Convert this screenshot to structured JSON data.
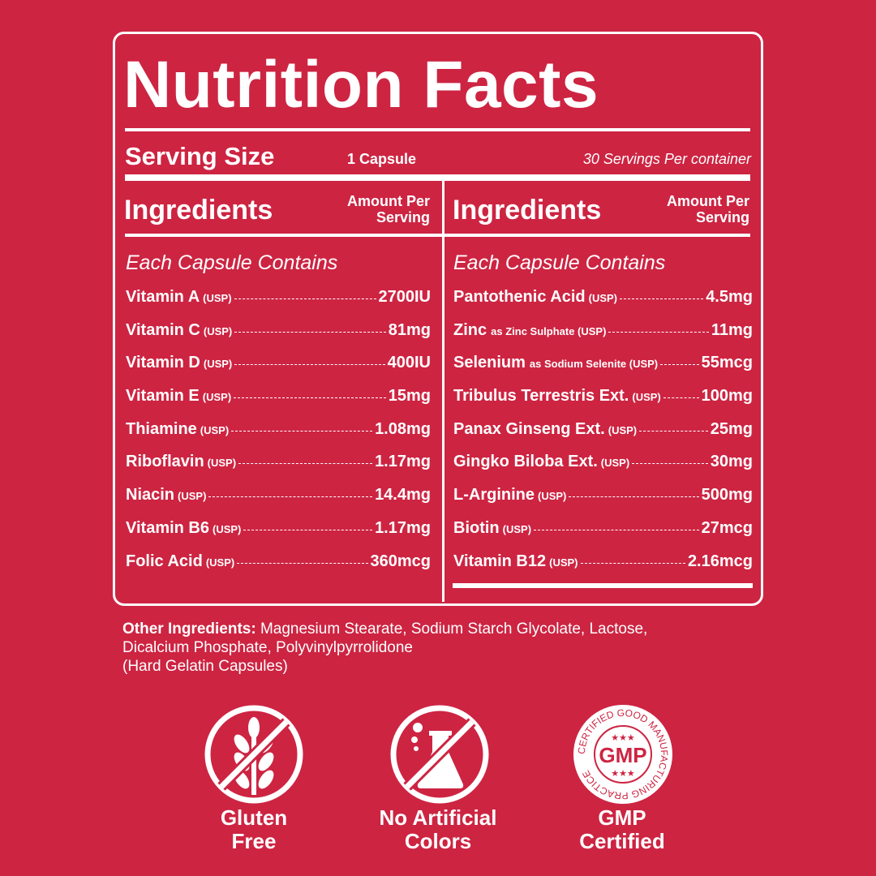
{
  "title": "Nutrition Facts",
  "serving": {
    "label": "Serving Size",
    "size": "1 Capsule",
    "per_container": "30 Servings Per container"
  },
  "columns": [
    {
      "header": "Ingredients",
      "amount_header_line1": "Amount Per",
      "amount_header_line2": "Serving",
      "subheader": "Each Capsule Contains",
      "rows": [
        {
          "name": "Vitamin A",
          "note": "(USP)",
          "amount": "2700IU"
        },
        {
          "name": "Vitamin C",
          "note": "(USP)",
          "amount": "81mg"
        },
        {
          "name": "Vitamin D",
          "note": "(USP)",
          "amount": "400IU"
        },
        {
          "name": "Vitamin E",
          "note": "(USP)",
          "amount": "15mg"
        },
        {
          "name": "Thiamine",
          "note": "(USP)",
          "amount": "1.08mg"
        },
        {
          "name": "Riboflavin",
          "note": "(USP)",
          "amount": "1.17mg"
        },
        {
          "name": "Niacin",
          "note": "(USP)",
          "amount": "14.4mg"
        },
        {
          "name": "Vitamin B6",
          "note": "(USP)",
          "amount": "1.17mg"
        },
        {
          "name": "Folic Acid",
          "note": "(USP)",
          "amount": "360mcg"
        }
      ]
    },
    {
      "header": "Ingredients",
      "amount_header_line1": "Amount Per",
      "amount_header_line2": "Serving",
      "subheader": "Each Capsule Contains",
      "rows": [
        {
          "name": "Pantothenic Acid",
          "note": "(USP)",
          "amount": "4.5mg"
        },
        {
          "name": "Zinc",
          "note": "as Zinc Sulphate (USP)",
          "amount": "11mg"
        },
        {
          "name": "Selenium",
          "note": "as Sodium Selenite (USP)",
          "amount": "55mcg"
        },
        {
          "name": "Tribulus Terrestris Ext.",
          "note": "(USP)",
          "amount": "100mg"
        },
        {
          "name": "Panax Ginseng Ext.",
          "note": "(USP)",
          "amount": "25mg"
        },
        {
          "name": "Gingko Biloba Ext.",
          "note": "(USP)",
          "amount": "30mg"
        },
        {
          "name": "L-Arginine",
          "note": "(USP)",
          "amount": "500mg"
        },
        {
          "name": "Biotin",
          "note": "(USP)",
          "amount": "27mcg"
        },
        {
          "name": "Vitamin B12",
          "note": "(USP)",
          "amount": "2.16mcg"
        }
      ]
    }
  ],
  "other_ingredients": {
    "label": "Other Ingredients:",
    "text": " Magnesium Stearate, Sodium Starch Glycolate, Lactose,",
    "line2": "Dicalcium Phosphate, Polyvinylpyrrolidone",
    "line3": "(Hard Gelatin Capsules)"
  },
  "badges": [
    {
      "icon": "no-gluten-icon",
      "line1": "Gluten",
      "line2": "Free"
    },
    {
      "icon": "no-artificial-colors-icon",
      "line1": "No Artificial",
      "line2": "Colors"
    },
    {
      "icon": "gmp-seal-icon",
      "line1": "GMP",
      "line2": "Certified",
      "seal_text": "CERTIFIED GOOD MANUFACTURING PRACTICE",
      "seal_center": "GMP"
    }
  ],
  "colors": {
    "background": "#cd2442",
    "foreground": "#ffffff"
  }
}
